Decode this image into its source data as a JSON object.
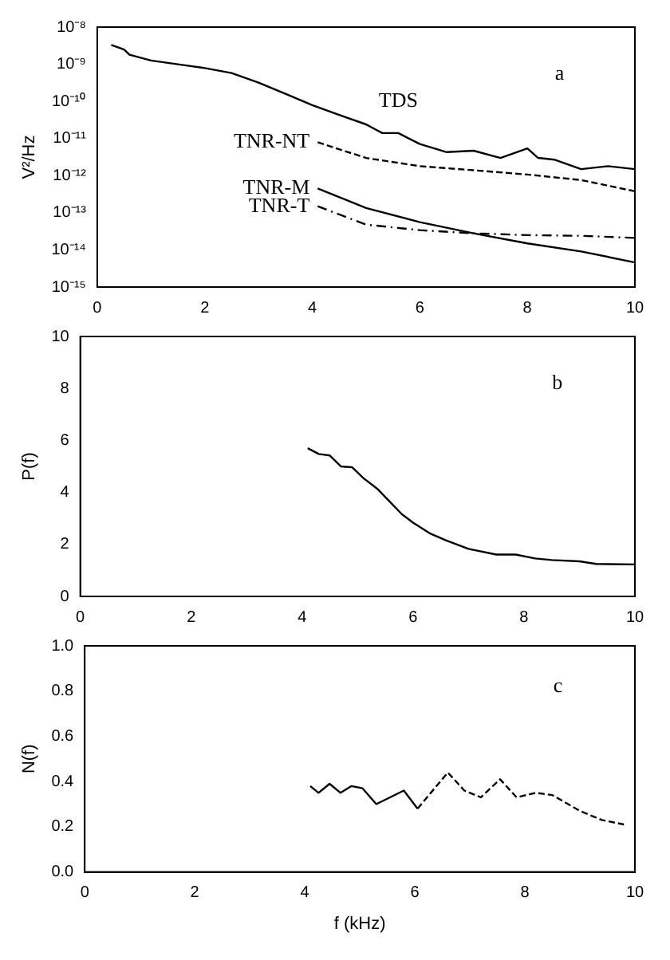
{
  "chart_data": [
    {
      "type": "line",
      "ylabel": "V²/Hz",
      "log": "y",
      "annotations": [
        "a"
      ],
      "xlim": [
        0,
        10
      ],
      "xticks": [
        0,
        2,
        4,
        6,
        8,
        10
      ],
      "ylim": [
        1e-15,
        1e-08
      ],
      "yticks": [
        {
          "value": 1e-15,
          "label": "10⁻¹⁵"
        },
        {
          "value": 1e-14,
          "label": "10⁻¹⁴"
        },
        {
          "value": 1e-13,
          "label": "10⁻¹³"
        },
        {
          "value": 1e-12,
          "label": "10⁻¹²"
        },
        {
          "value": 1e-11,
          "label": "10⁻¹¹"
        },
        {
          "value": 1e-10,
          "label": "10⁻¹⁰"
        },
        {
          "value": 1e-09,
          "label": "10⁻⁹"
        },
        {
          "value": 1e-08,
          "label": "10⁻⁸"
        }
      ],
      "series": [
        {
          "name": "TDS",
          "color": "#000000",
          "line_style": "solid",
          "x": [
            0.26,
            0.5,
            0.6,
            1.0,
            1.5,
            2.0,
            2.5,
            3.0,
            3.5,
            4.0,
            4.5,
            5.0,
            5.3,
            5.6,
            6.0,
            6.5,
            7.0,
            7.5,
            8.0,
            8.2,
            8.5,
            9.0,
            9.5,
            10
          ],
          "values": [
            3.3e-09,
            2.5e-09,
            1.8e-09,
            1.26e-09,
            1e-09,
            7.9e-10,
            5.8e-10,
            3.2e-10,
            1.6e-10,
            7.9e-11,
            4.3e-11,
            2.4e-11,
            1.4e-11,
            1.4e-11,
            7.1e-12,
            4.3e-12,
            4.7e-12,
            3e-12,
            5.4e-12,
            3e-12,
            2.7e-12,
            1.5e-12,
            1.8e-12,
            1.5e-12
          ]
        },
        {
          "name": "TNR-NT",
          "color": "#000000",
          "line_style": "dashed",
          "x": [
            4.1,
            5,
            6,
            7,
            8,
            9,
            10
          ],
          "values": [
            7.9e-12,
            3e-12,
            1.8e-12,
            1.4e-12,
            1.07e-12,
            7.6e-13,
            3.8e-13
          ]
        },
        {
          "name": "TNR-M",
          "color": "#000000",
          "line_style": "solid",
          "x": [
            4.1,
            5,
            6,
            7,
            8,
            9,
            10
          ],
          "values": [
            4.5e-13,
            1.35e-13,
            5.6e-14,
            2.8e-14,
            1.5e-14,
            9.1e-15,
            4.6e-15
          ]
        },
        {
          "name": "TNR-T",
          "color": "#000000",
          "line_style": "dashdot",
          "x": [
            4.1,
            5,
            6,
            7,
            8,
            9,
            10
          ],
          "values": [
            1.5e-13,
            4.8e-14,
            3.4e-14,
            2.8e-14,
            2.5e-14,
            2.4e-14,
            2.1e-14
          ]
        }
      ]
    },
    {
      "type": "line",
      "ylabel": "P(f)",
      "annotations": [
        "b"
      ],
      "xlim": [
        0,
        10
      ],
      "xticks": [
        0,
        2,
        4,
        6,
        8,
        10
      ],
      "ylim": [
        0,
        10
      ],
      "yticks": [
        0,
        2,
        4,
        6,
        8,
        10
      ],
      "series": [
        {
          "color": "#000000",
          "line_style": "solid",
          "x": [
            4.1,
            4.3,
            4.5,
            4.7,
            4.9,
            5.1,
            5.35,
            5.6,
            5.8,
            6.0,
            6.3,
            6.6,
            7.0,
            7.5,
            7.85,
            8.2,
            8.5,
            9.0,
            9.3,
            10
          ],
          "values": [
            5.7,
            5.48,
            5.42,
            5.0,
            4.97,
            4.56,
            4.15,
            3.6,
            3.16,
            2.84,
            2.43,
            2.15,
            1.83,
            1.61,
            1.61,
            1.46,
            1.4,
            1.35,
            1.25,
            1.23
          ]
        }
      ]
    },
    {
      "type": "line",
      "xlabel": "f (kHz)",
      "ylabel": "N(f)",
      "annotations": [
        "c"
      ],
      "xlim": [
        0,
        10
      ],
      "xticks": [
        0,
        2,
        4,
        6,
        8,
        10
      ],
      "ylim": [
        0,
        1
      ],
      "yticks": [
        {
          "value": 0,
          "label": "0.0"
        },
        0.2,
        0.4,
        0.6,
        0.8,
        {
          "value": 1,
          "label": "1.0"
        }
      ],
      "series": [
        {
          "color": "#000000",
          "line_style": "solid",
          "x": [
            4.1,
            4.25,
            4.45,
            4.65,
            4.85,
            5.05,
            5.3,
            5.8,
            6.05
          ],
          "values": [
            0.38,
            0.35,
            0.39,
            0.35,
            0.38,
            0.37,
            0.3,
            0.36,
            0.28
          ]
        },
        {
          "color": "#000000",
          "line_style": "dashed",
          "x": [
            6.05,
            6.6,
            6.9,
            7.2,
            7.55,
            7.85,
            8.2,
            8.5,
            9.0,
            9.4,
            9.8
          ],
          "values": [
            0.28,
            0.44,
            0.36,
            0.33,
            0.41,
            0.33,
            0.35,
            0.34,
            0.27,
            0.23,
            0.21
          ]
        }
      ]
    }
  ]
}
